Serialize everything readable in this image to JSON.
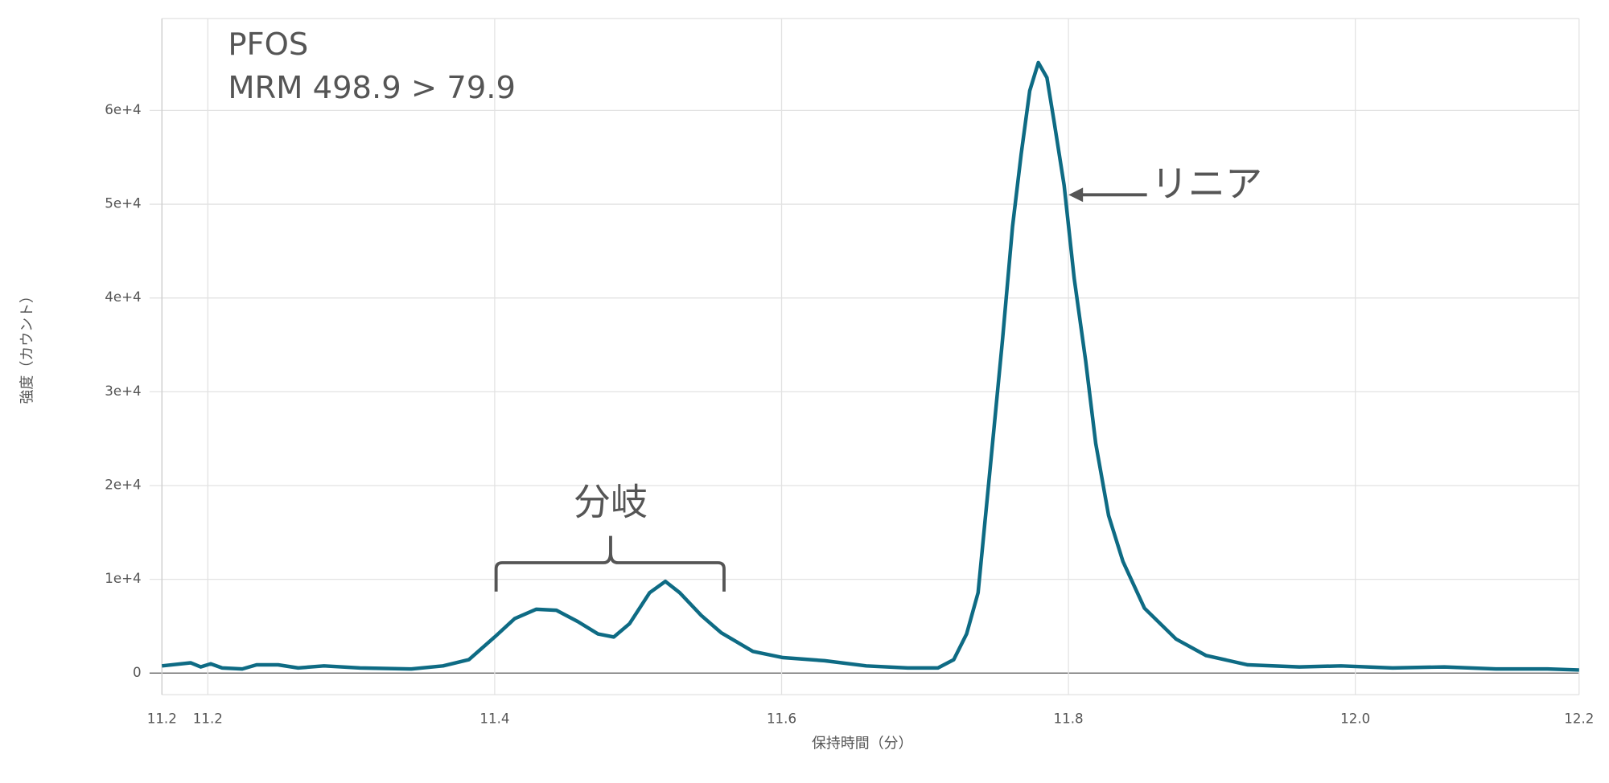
{
  "chart_data": {
    "type": "line",
    "title": "PFOS",
    "subtitle": "MRM 498.9 > 79.9",
    "x_label": "保持時間（分）",
    "y_label": "強度（カウント）",
    "annotations": [
      "分岐",
      "リニア"
    ],
    "color": "#0e6b84",
    "grid": true,
    "xlim": [
      11.168,
      12.156
    ],
    "xticks": [
      {
        "value": 11.168,
        "label": "11.2"
      },
      {
        "value": 11.2,
        "label": "11.2"
      },
      11.4,
      11.6,
      11.8,
      {
        "value": 12.0,
        "label": "12.0"
      },
      {
        "value": 12.156,
        "label": "12.2"
      }
    ],
    "ylim": [
      -2300,
      69800
    ],
    "yticks": [
      0,
      {
        "value": 10000,
        "label": "1e+4"
      },
      {
        "value": 20000,
        "label": "2e+4"
      },
      {
        "value": 30000,
        "label": "3e+4"
      },
      {
        "value": 40000,
        "label": "4e+4"
      },
      {
        "value": 50000,
        "label": "5e+4"
      },
      {
        "value": 60000,
        "label": "6e+4"
      }
    ],
    "x": [
      11.168,
      11.188,
      11.195,
      11.202,
      11.21,
      11.224,
      11.234,
      11.249,
      11.263,
      11.281,
      11.306,
      11.342,
      11.364,
      11.382,
      11.4,
      11.414,
      11.429,
      11.443,
      11.458,
      11.472,
      11.483,
      11.494,
      11.508,
      11.519,
      11.529,
      11.544,
      11.558,
      11.58,
      11.601,
      11.63,
      11.659,
      11.688,
      11.709,
      11.72,
      11.729,
      11.737,
      11.745,
      11.754,
      11.761,
      11.767,
      11.773,
      11.779,
      11.785,
      11.79,
      11.797,
      11.804,
      11.812,
      11.819,
      11.828,
      11.838,
      11.853,
      11.875,
      11.896,
      11.925,
      11.961,
      11.99,
      12.026,
      12.062,
      12.098,
      12.134,
      12.156
    ],
    "values": [
      770,
      1100,
      660,
      990,
      550,
      440,
      880,
      880,
      550,
      770,
      550,
      440,
      770,
      1430,
      3850,
      5820,
      6810,
      6700,
      5490,
      4180,
      3850,
      5270,
      8570,
      9780,
      8570,
      6150,
      4290,
      2310,
      1650,
      1320,
      770,
      550,
      550,
      1430,
      4180,
      8570,
      21200,
      35500,
      47600,
      55300,
      62100,
      65100,
      63500,
      58800,
      52000,
      42100,
      33300,
      24500,
      16800,
      11900,
      6920,
      3630,
      1870,
      880,
      660,
      770,
      550,
      660,
      440,
      440,
      330
    ]
  }
}
